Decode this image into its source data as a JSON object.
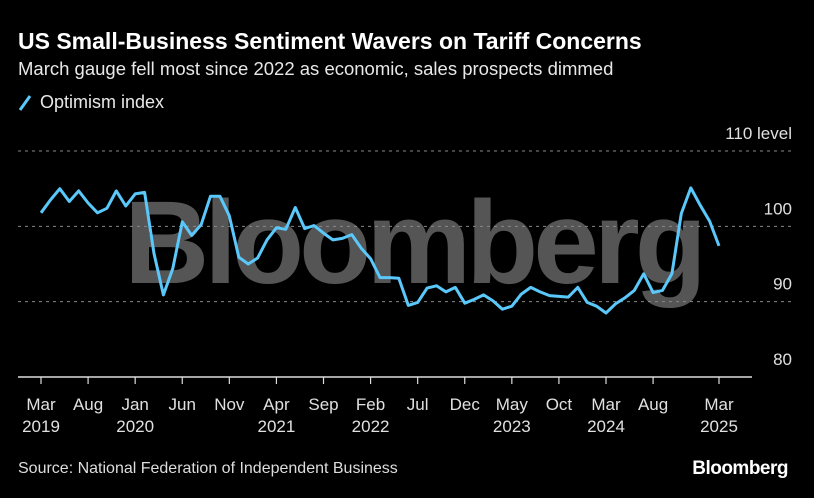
{
  "header": {
    "title": "US Small-Business Sentiment Wavers on Tariff Concerns",
    "subtitle": "March gauge fell most since 2022 as economic, sales prospects dimmed"
  },
  "footer": {
    "source": "Source: National Federation of Independent Business",
    "logo": "Bloomberg"
  },
  "watermark": "Bloomberg",
  "colors": {
    "line": "#5ac8fa",
    "grid": "#888888",
    "watermark": "#555555"
  },
  "chart_data": {
    "type": "line",
    "title": "US Small-Business Sentiment Wavers on Tariff Concerns",
    "legend": [
      "Optimism index"
    ],
    "legend_placement": "top-left",
    "ylim": [
      80,
      110
    ],
    "yticks": [
      {
        "value": 110,
        "label": "110 level"
      },
      {
        "value": 100,
        "label": "100"
      },
      {
        "value": 90,
        "label": "90"
      },
      {
        "value": 80,
        "label": "80"
      }
    ],
    "xticks": [
      {
        "i": 0,
        "m": "Mar",
        "y": "2019"
      },
      {
        "i": 5,
        "m": "Aug",
        "y": ""
      },
      {
        "i": 10,
        "m": "Jan",
        "y": "2020"
      },
      {
        "i": 15,
        "m": "Jun",
        "y": ""
      },
      {
        "i": 20,
        "m": "Nov",
        "y": ""
      },
      {
        "i": 25,
        "m": "Apr",
        "y": "2021"
      },
      {
        "i": 30,
        "m": "Sep",
        "y": ""
      },
      {
        "i": 35,
        "m": "Feb",
        "y": "2022"
      },
      {
        "i": 40,
        "m": "Jul",
        "y": ""
      },
      {
        "i": 45,
        "m": "Dec",
        "y": ""
      },
      {
        "i": 50,
        "m": "May",
        "y": "2023"
      },
      {
        "i": 55,
        "m": "Oct",
        "y": ""
      },
      {
        "i": 60,
        "m": "Mar",
        "y": "2024"
      },
      {
        "i": 65,
        "m": "Aug",
        "y": ""
      },
      {
        "i": 72,
        "m": "Mar",
        "y": "2025"
      }
    ],
    "x_start": "2019-03",
    "x_end": "2025-03",
    "frequency": "monthly",
    "series": [
      {
        "name": "Optimism index",
        "values": [
          101.8,
          103.5,
          105.0,
          103.3,
          104.7,
          103.1,
          101.8,
          102.4,
          104.7,
          102.7,
          104.3,
          104.5,
          96.4,
          90.9,
          94.4,
          100.6,
          98.8,
          100.2,
          104.0,
          104.0,
          101.4,
          95.9,
          95.0,
          95.8,
          98.2,
          99.8,
          99.6,
          102.5,
          99.7,
          100.1,
          99.1,
          98.2,
          98.4,
          98.9,
          97.1,
          95.7,
          93.2,
          93.2,
          93.1,
          89.5,
          89.9,
          91.8,
          92.1,
          91.3,
          91.9,
          89.8,
          90.3,
          90.9,
          90.1,
          89.0,
          89.4,
          91.0,
          91.9,
          91.3,
          90.8,
          90.7,
          90.6,
          91.9,
          89.9,
          89.4,
          88.5,
          89.7,
          90.5,
          91.5,
          93.7,
          91.2,
          91.5,
          93.7,
          101.7,
          105.1,
          102.8,
          100.7,
          97.4
        ]
      }
    ]
  }
}
